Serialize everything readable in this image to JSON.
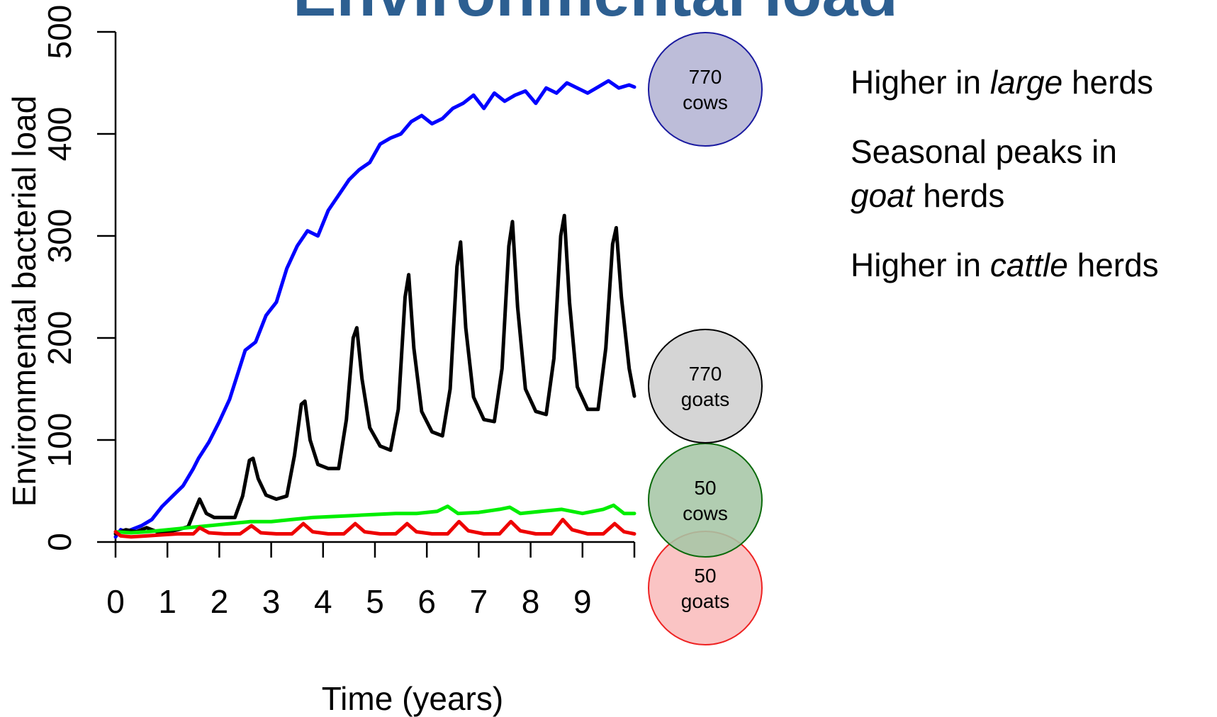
{
  "slide_title": "Environmental load",
  "chart_data": {
    "type": "line",
    "xlabel": "Time (years)",
    "ylabel": "Environmental bacterial load",
    "xlim": [
      0,
      10
    ],
    "ylim": [
      0,
      500
    ],
    "x_ticks": [
      0,
      1,
      2,
      3,
      4,
      5,
      6,
      7,
      8,
      9
    ],
    "y_ticks": [
      0,
      100,
      200,
      300,
      400,
      500
    ],
    "series": [
      {
        "color": "#0000ff",
        "x": [
          0,
          0.1,
          0.2,
          0.3,
          0.5,
          0.7,
          0.9,
          1.1,
          1.3,
          1.5,
          1.6,
          1.8,
          2.0,
          2.2,
          2.5,
          2.7,
          2.9,
          3.1,
          3.3,
          3.5,
          3.7,
          3.9,
          4.1,
          4.3,
          4.5,
          4.7,
          4.9,
          5.1,
          5.3,
          5.5,
          5.7,
          5.9,
          6.1,
          6.3,
          6.5,
          6.7,
          6.9,
          7.1,
          7.3,
          7.5,
          7.7,
          7.9,
          8.1,
          8.3,
          8.5,
          8.7,
          8.9,
          9.1,
          9.3,
          9.5,
          9.7,
          9.9,
          10.0
        ],
        "y": [
          5,
          12,
          10,
          12,
          16,
          22,
          35,
          45,
          55,
          72,
          82,
          98,
          118,
          140,
          188,
          196,
          222,
          235,
          268,
          290,
          305,
          300,
          325,
          340,
          355,
          365,
          372,
          390,
          396,
          400,
          412,
          418,
          410,
          415,
          425,
          430,
          438,
          425,
          440,
          432,
          438,
          442,
          430,
          445,
          440,
          450,
          445,
          440,
          446,
          452,
          445,
          448,
          446
        ]
      },
      {
        "color": "#000000",
        "x": [
          0,
          0.2,
          0.4,
          0.6,
          0.8,
          1.0,
          1.2,
          1.4,
          1.52,
          1.62,
          1.75,
          1.9,
          2.1,
          2.3,
          2.45,
          2.58,
          2.65,
          2.75,
          2.9,
          3.1,
          3.3,
          3.45,
          3.58,
          3.65,
          3.75,
          3.9,
          4.1,
          4.3,
          4.45,
          4.58,
          4.65,
          4.75,
          4.9,
          5.1,
          5.3,
          5.45,
          5.58,
          5.65,
          5.75,
          5.9,
          6.1,
          6.3,
          6.45,
          6.58,
          6.65,
          6.75,
          6.9,
          7.1,
          7.3,
          7.45,
          7.58,
          7.65,
          7.75,
          7.9,
          8.1,
          8.3,
          8.45,
          8.58,
          8.65,
          8.75,
          8.9,
          9.1,
          9.3,
          9.45,
          9.58,
          9.65,
          9.75,
          9.9,
          10.0
        ],
        "y": [
          8,
          12,
          10,
          14,
          10,
          10,
          12,
          15,
          30,
          42,
          28,
          24,
          24,
          24,
          45,
          80,
          82,
          62,
          46,
          42,
          45,
          85,
          135,
          138,
          100,
          76,
          72,
          72,
          120,
          200,
          210,
          160,
          112,
          94,
          90,
          130,
          240,
          262,
          190,
          128,
          108,
          104,
          150,
          270,
          294,
          210,
          142,
          120,
          118,
          170,
          290,
          314,
          230,
          150,
          128,
          125,
          180,
          300,
          320,
          235,
          152,
          130,
          130,
          190,
          292,
          308,
          240,
          170,
          143
        ]
      },
      {
        "color": "#00ee00",
        "x": [
          0,
          0.3,
          0.6,
          1.0,
          1.4,
          1.8,
          2.2,
          2.6,
          3.0,
          3.4,
          3.8,
          4.2,
          4.6,
          5.0,
          5.4,
          5.8,
          6.2,
          6.4,
          6.6,
          7.0,
          7.4,
          7.6,
          7.8,
          8.2,
          8.6,
          9.0,
          9.4,
          9.6,
          9.8,
          10.0
        ],
        "y": [
          10,
          9,
          10,
          12,
          14,
          16,
          18,
          20,
          20,
          22,
          24,
          25,
          26,
          27,
          28,
          28,
          30,
          35,
          28,
          29,
          32,
          34,
          28,
          30,
          32,
          28,
          32,
          36,
          28,
          28
        ]
      },
      {
        "color": "#ee0000",
        "x": [
          0,
          0.1,
          0.3,
          0.6,
          0.9,
          1.2,
          1.5,
          1.62,
          1.8,
          2.1,
          2.4,
          2.62,
          2.8,
          3.1,
          3.4,
          3.62,
          3.8,
          4.1,
          4.4,
          4.62,
          4.8,
          5.1,
          5.4,
          5.62,
          5.8,
          6.1,
          6.4,
          6.62,
          6.8,
          7.1,
          7.4,
          7.62,
          7.8,
          8.1,
          8.4,
          8.62,
          8.8,
          9.1,
          9.4,
          9.62,
          9.8,
          10.0
        ],
        "y": [
          10,
          6,
          5,
          6,
          7,
          8,
          8,
          14,
          9,
          8,
          8,
          16,
          9,
          8,
          8,
          18,
          10,
          8,
          8,
          18,
          10,
          8,
          8,
          18,
          10,
          8,
          8,
          20,
          11,
          8,
          8,
          20,
          11,
          8,
          8,
          22,
          12,
          8,
          8,
          18,
          10,
          8
        ]
      }
    ],
    "bubbles": [
      {
        "line1": "770",
        "line2": "cows",
        "fill": "#b4b4d4",
        "stroke": "#1a1aa0"
      },
      {
        "line1": "770",
        "line2": "goats",
        "fill": "#cfcfcf",
        "stroke": "#000000"
      },
      {
        "line1": "50",
        "line2": "cows",
        "fill": "#a6c6a6",
        "stroke": "#0a6a0a"
      },
      {
        "line1": "50",
        "line2": "goats",
        "fill": "#f9bcbc",
        "stroke": "#ee2222"
      }
    ]
  },
  "notes": [
    {
      "pre": "Higher in ",
      "em": "large",
      "post": " herds"
    },
    {
      "line1": "Seasonal peaks in",
      "em": "goat",
      "post": " herds"
    },
    {
      "pre": "Higher in ",
      "em": "cattle",
      "post": " herds"
    }
  ]
}
